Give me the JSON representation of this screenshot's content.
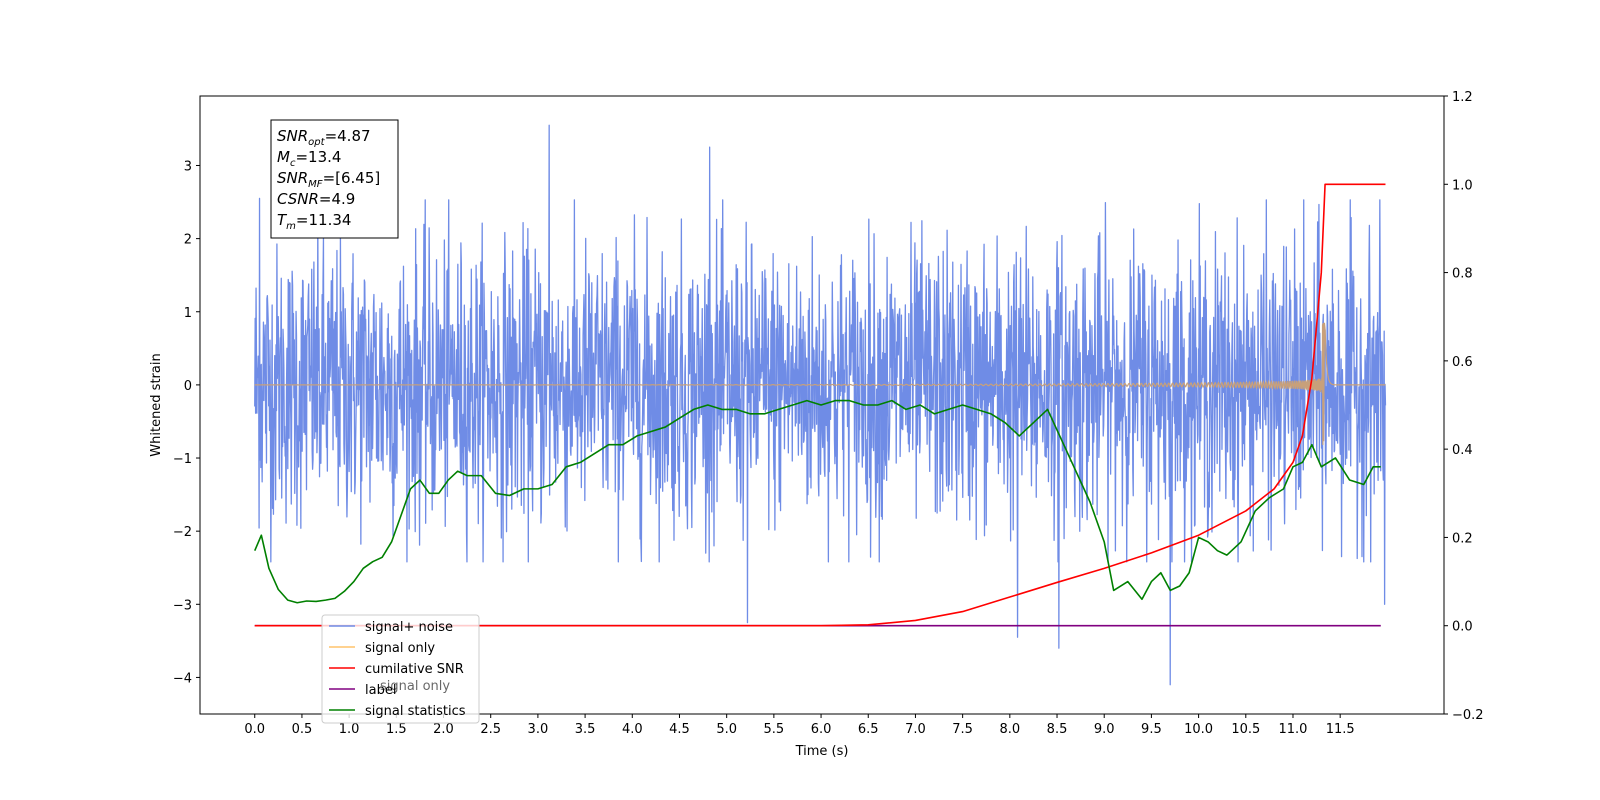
{
  "chart_data": {
    "type": "line",
    "title": "",
    "xlabel": "Time (s)",
    "ylabel": "Whitened strain",
    "y2label": "",
    "xlim": [
      -0.58,
      12.6
    ],
    "ylim": [
      -4.5,
      3.95
    ],
    "y2lim": [
      -0.2,
      1.2
    ],
    "x_ticks": [
      0.0,
      0.5,
      1.0,
      1.5,
      2.0,
      2.5,
      3.0,
      3.5,
      4.0,
      4.5,
      5.0,
      5.5,
      6.0,
      6.5,
      7.0,
      7.5,
      8.0,
      8.5,
      9.0,
      9.5,
      10.0,
      10.5,
      11.0,
      11.5
    ],
    "x_tick_labels": [
      "0.0",
      "0.5",
      "1.0",
      "1.5",
      "2.0",
      "2.5",
      "3.0",
      "3.5",
      "4.0",
      "4.5",
      "5.0",
      "5.5",
      "6.0",
      "6.5",
      "7.0",
      "7.5",
      "8.0",
      "8.5",
      "9.0",
      "9.5",
      "10.0",
      "10.5",
      "11.0",
      "11.5"
    ],
    "y_ticks": [
      -4,
      -3,
      -2,
      -1,
      0,
      1,
      2,
      3
    ],
    "y_tick_labels": [
      "−4",
      "−3",
      "−2",
      "−1",
      "0",
      "1",
      "2",
      "3"
    ],
    "y2_ticks": [
      -0.2,
      0.0,
      0.2,
      0.4,
      0.6,
      0.8,
      1.0,
      1.2
    ],
    "y2_tick_labels": [
      "−0.2",
      "0.0",
      "0.2",
      "0.4",
      "0.6",
      "0.8",
      "1.0",
      "1.2"
    ],
    "grid": false,
    "legend_position": "lower-left",
    "legend": [
      {
        "label": "signal+ noise",
        "color": "#6f8ce6"
      },
      {
        "label": "signal only",
        "color": "#ffc36b"
      },
      {
        "label": "cumilative SNR",
        "color": "#ff0000"
      },
      {
        "label": "label",
        "color": "#800080"
      },
      {
        "label": "signal statistics",
        "color": "#008000"
      }
    ],
    "hidden_legend_text": "signal only",
    "annotation_box": {
      "lines": [
        {
          "base": "SNR",
          "sub": "opt",
          "rest": "=4.87"
        },
        {
          "base": "M",
          "sub": "c",
          "rest": "=13.4"
        },
        {
          "base": "SNR",
          "sub": "MF",
          "rest": "=[6.45]"
        },
        {
          "base": "CSNR",
          "sub": "",
          "rest": "=4.9"
        },
        {
          "base": "T",
          "sub": "m",
          "rest": "=11.34"
        }
      ]
    },
    "series": [
      {
        "name": "signal+ noise",
        "axis": "left",
        "color": "#6f8ce6",
        "kind": "noise",
        "x_range": [
          0.0,
          11.98
        ],
        "envelope_upper": 2.2,
        "envelope_lower": -2.2,
        "spikes": [
          {
            "x": 0.05,
            "y": 2.55
          },
          {
            "x": 3.12,
            "y": 3.55
          },
          {
            "x": 4.82,
            "y": 3.25
          },
          {
            "x": 5.22,
            "y": -3.25
          },
          {
            "x": 8.08,
            "y": -3.45
          },
          {
            "x": 8.52,
            "y": -3.6
          },
          {
            "x": 9.7,
            "y": -4.1
          },
          {
            "x": 11.97,
            "y": -3.0
          }
        ]
      },
      {
        "name": "signal only",
        "axis": "left",
        "color": "#c8a07a",
        "kind": "chirp",
        "x_range": [
          0.0,
          11.98
        ],
        "merger_time": 11.34,
        "peak_amplitude": 0.85
      },
      {
        "name": "cumilative SNR",
        "axis": "right",
        "color": "#ff0000",
        "x": [
          0.0,
          6.0,
          6.5,
          7.0,
          7.5,
          8.0,
          8.5,
          9.0,
          9.5,
          10.0,
          10.5,
          10.8,
          11.0,
          11.1,
          11.2,
          11.3,
          11.34,
          11.98
        ],
        "y": [
          0.0,
          0.0,
          0.002,
          0.012,
          0.032,
          0.065,
          0.098,
          0.13,
          0.165,
          0.205,
          0.26,
          0.31,
          0.37,
          0.43,
          0.56,
          0.8,
          1.0,
          1.0
        ]
      },
      {
        "name": "label",
        "axis": "right",
        "color": "#800080",
        "x": [
          0.0,
          11.93
        ],
        "y": [
          0.0,
          0.0
        ]
      },
      {
        "name": "signal statistics",
        "axis": "right",
        "color": "#008000",
        "x": [
          0.0,
          0.07,
          0.15,
          0.25,
          0.35,
          0.45,
          0.55,
          0.65,
          0.75,
          0.85,
          0.95,
          1.05,
          1.15,
          1.25,
          1.35,
          1.45,
          1.55,
          1.65,
          1.75,
          1.85,
          1.95,
          2.05,
          2.15,
          2.25,
          2.4,
          2.55,
          2.7,
          2.85,
          3.0,
          3.15,
          3.3,
          3.45,
          3.6,
          3.75,
          3.9,
          4.05,
          4.2,
          4.35,
          4.5,
          4.65,
          4.8,
          4.95,
          5.1,
          5.25,
          5.4,
          5.55,
          5.7,
          5.85,
          6.0,
          6.15,
          6.3,
          6.45,
          6.6,
          6.75,
          6.9,
          7.05,
          7.2,
          7.35,
          7.5,
          7.65,
          7.8,
          7.95,
          8.1,
          8.25,
          8.4,
          8.55,
          8.7,
          8.85,
          9.0,
          9.1,
          9.25,
          9.4,
          9.5,
          9.6,
          9.7,
          9.8,
          9.9,
          10.0,
          10.1,
          10.2,
          10.3,
          10.45,
          10.6,
          10.75,
          10.9,
          11.0,
          11.1,
          11.2,
          11.3,
          11.45,
          11.6,
          11.75,
          11.85,
          11.93
        ],
        "y": [
          0.17,
          0.205,
          0.13,
          0.082,
          0.058,
          0.052,
          0.056,
          0.055,
          0.058,
          0.062,
          0.078,
          0.1,
          0.13,
          0.145,
          0.155,
          0.19,
          0.25,
          0.31,
          0.33,
          0.3,
          0.3,
          0.33,
          0.35,
          0.34,
          0.34,
          0.3,
          0.295,
          0.31,
          0.31,
          0.32,
          0.36,
          0.37,
          0.39,
          0.41,
          0.41,
          0.43,
          0.44,
          0.45,
          0.47,
          0.49,
          0.5,
          0.49,
          0.49,
          0.48,
          0.48,
          0.49,
          0.5,
          0.51,
          0.5,
          0.51,
          0.51,
          0.5,
          0.5,
          0.51,
          0.49,
          0.5,
          0.48,
          0.49,
          0.5,
          0.49,
          0.48,
          0.46,
          0.43,
          0.46,
          0.49,
          0.42,
          0.35,
          0.28,
          0.19,
          0.08,
          0.1,
          0.06,
          0.1,
          0.12,
          0.08,
          0.09,
          0.12,
          0.2,
          0.19,
          0.17,
          0.16,
          0.19,
          0.26,
          0.29,
          0.31,
          0.36,
          0.37,
          0.41,
          0.36,
          0.38,
          0.33,
          0.32,
          0.36,
          0.36
        ]
      }
    ]
  }
}
